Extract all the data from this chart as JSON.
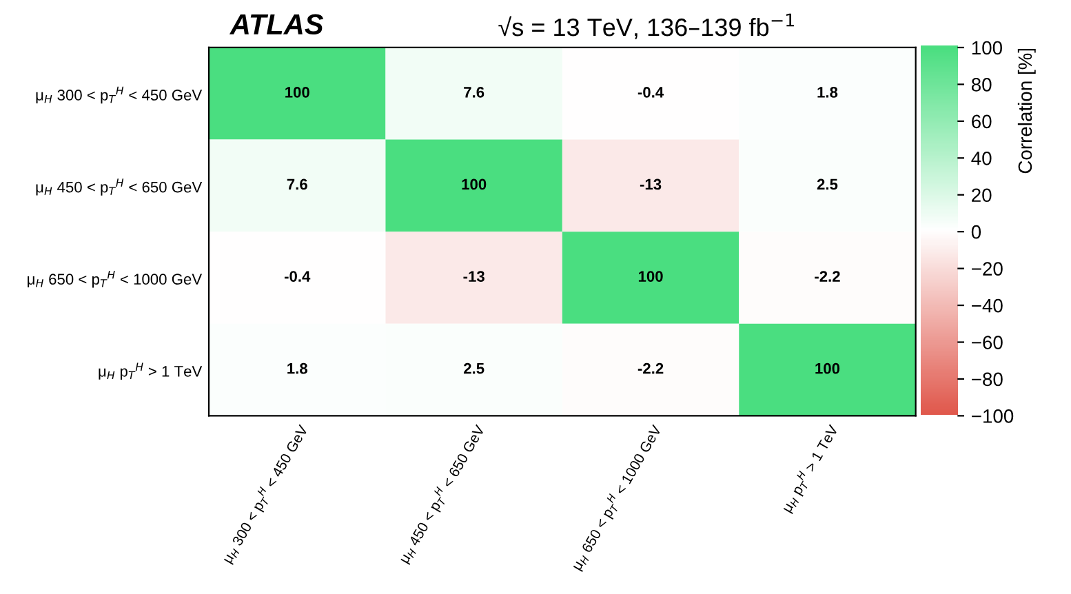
{
  "chart_data": {
    "type": "heatmap",
    "title": "√s = 13 TeV, 136–139 fb$^{−1}$",
    "annotations": [
      "ATLAS"
    ],
    "clabel": "Correlation [%]",
    "categories": [
      "μ$_{H}$ 300 < p$_{T}$$^{H}$ < 450 GeV",
      "μ$_{H}$ 450 < p$_{T}$$^{H}$ < 650 GeV",
      "μ$_{H}$ 650 < p$_{T}$$^{H}$ < 1000 GeV",
      "μ$_{H}$ p$_{T}$$^{H}$ > 1 TeV"
    ],
    "y_categories": [
      "μ$_{H}$ 300 < p$_{T}$$^{H}$ < 450 GeV",
      "μ$_{H}$ 450 < p$_{T}$$^{H}$ < 650 GeV",
      "μ$_{H}$ 650 < p$_{T}$$^{H}$ < 1000 GeV",
      "μ$_{H}$ p$_{T}$$^{H}$ > 1 TeV"
    ],
    "cells": [
      [
        100,
        7.6,
        -0.4,
        1.8
      ],
      [
        7.6,
        100,
        -13,
        2.5
      ],
      [
        -0.4,
        -13,
        100,
        -2.2
      ],
      [
        1.8,
        2.5,
        -2.2,
        100
      ]
    ],
    "data_labels": true,
    "clim": [
      -100,
      100
    ],
    "cticks": [
      {
        "value": -100,
        "label": "−100"
      },
      {
        "value": -80,
        "label": "−80"
      },
      {
        "value": -60,
        "label": "−60"
      },
      {
        "value": -40,
        "label": "−40"
      },
      {
        "value": -20,
        "label": "−20"
      },
      0,
      20,
      40,
      60,
      80,
      100
    ],
    "colors": [
      "#e0584c",
      "#ffffff",
      "#4ade80"
    ]
  }
}
